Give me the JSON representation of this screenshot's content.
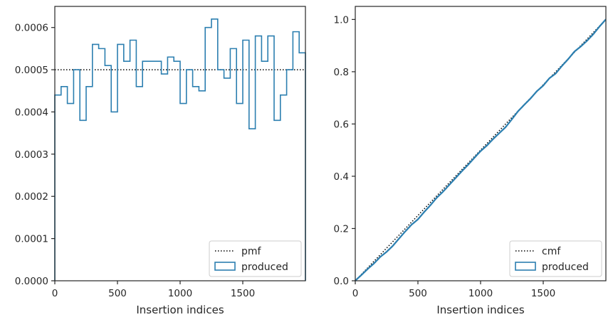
{
  "chart_data": [
    {
      "type": "line",
      "subtype": "step-histogram",
      "xlabel": "Insertion indices",
      "ylabel": "",
      "xlim": [
        0,
        2000
      ],
      "ylim": [
        0,
        0.00065
      ],
      "xticks": [
        0,
        500,
        1000,
        1500
      ],
      "xtick_labels": [
        "0",
        "500",
        "1000",
        "1500"
      ],
      "yticks": [
        0,
        0.0001,
        0.0002,
        0.0003,
        0.0004,
        0.0005,
        0.0006
      ],
      "ytick_labels": [
        "0.0000",
        "0.0001",
        "0.0002",
        "0.0003",
        "0.0004",
        "0.0005",
        "0.0006"
      ],
      "grid": false,
      "legend": {
        "placement": "lower-right",
        "entries": [
          "pmf",
          "produced"
        ]
      },
      "series": [
        {
          "name": "pmf",
          "style": "dotted",
          "color": "#000000",
          "x": [
            0,
            2000
          ],
          "y": [
            0.0005,
            0.0005
          ]
        },
        {
          "name": "produced",
          "style": "step",
          "color": "#2c7fb0",
          "bin_edges": [
            0,
            50,
            100,
            150,
            200,
            250,
            300,
            350,
            400,
            450,
            500,
            550,
            600,
            650,
            700,
            750,
            800,
            850,
            900,
            950,
            1000,
            1050,
            1100,
            1150,
            1200,
            1250,
            1300,
            1350,
            1400,
            1450,
            1500,
            1550,
            1600,
            1650,
            1700,
            1750,
            1800,
            1850,
            1900,
            1950,
            2000
          ],
          "values": [
            0.00044,
            0.00046,
            0.00042,
            0.0005,
            0.00038,
            0.00046,
            0.00056,
            0.00055,
            0.00051,
            0.0004,
            0.00056,
            0.00052,
            0.00057,
            0.00046,
            0.00052,
            0.00052,
            0.00052,
            0.00049,
            0.00053,
            0.00052,
            0.00042,
            0.0005,
            0.00046,
            0.00045,
            0.0006,
            0.00062,
            0.0005,
            0.00048,
            0.00055,
            0.00042,
            0.00057,
            0.00036,
            0.00058,
            0.00052,
            0.00058,
            0.00038,
            0.00044,
            0.0005,
            0.00059,
            0.00054
          ]
        }
      ]
    },
    {
      "type": "line",
      "subtype": "step-cumulative",
      "xlabel": "Insertion indices",
      "ylabel": "",
      "xlim": [
        0,
        2000
      ],
      "ylim": [
        0,
        1.05
      ],
      "xticks": [
        0,
        500,
        1000,
        1500
      ],
      "xtick_labels": [
        "0",
        "500",
        "1000",
        "1500"
      ],
      "yticks": [
        0,
        0.2,
        0.4,
        0.6,
        0.8,
        1.0
      ],
      "ytick_labels": [
        "0.0",
        "0.2",
        "0.4",
        "0.6",
        "0.8",
        "1.0"
      ],
      "grid": false,
      "legend": {
        "placement": "lower-right",
        "entries": [
          "cmf",
          "produced"
        ]
      },
      "series": [
        {
          "name": "cmf",
          "style": "dotted",
          "color": "#000000",
          "x": [
            0,
            2000
          ],
          "y": [
            0,
            1.0
          ]
        },
        {
          "name": "produced",
          "style": "step-cumulative-of-left-histogram",
          "color": "#2c7fb0"
        }
      ]
    }
  ]
}
